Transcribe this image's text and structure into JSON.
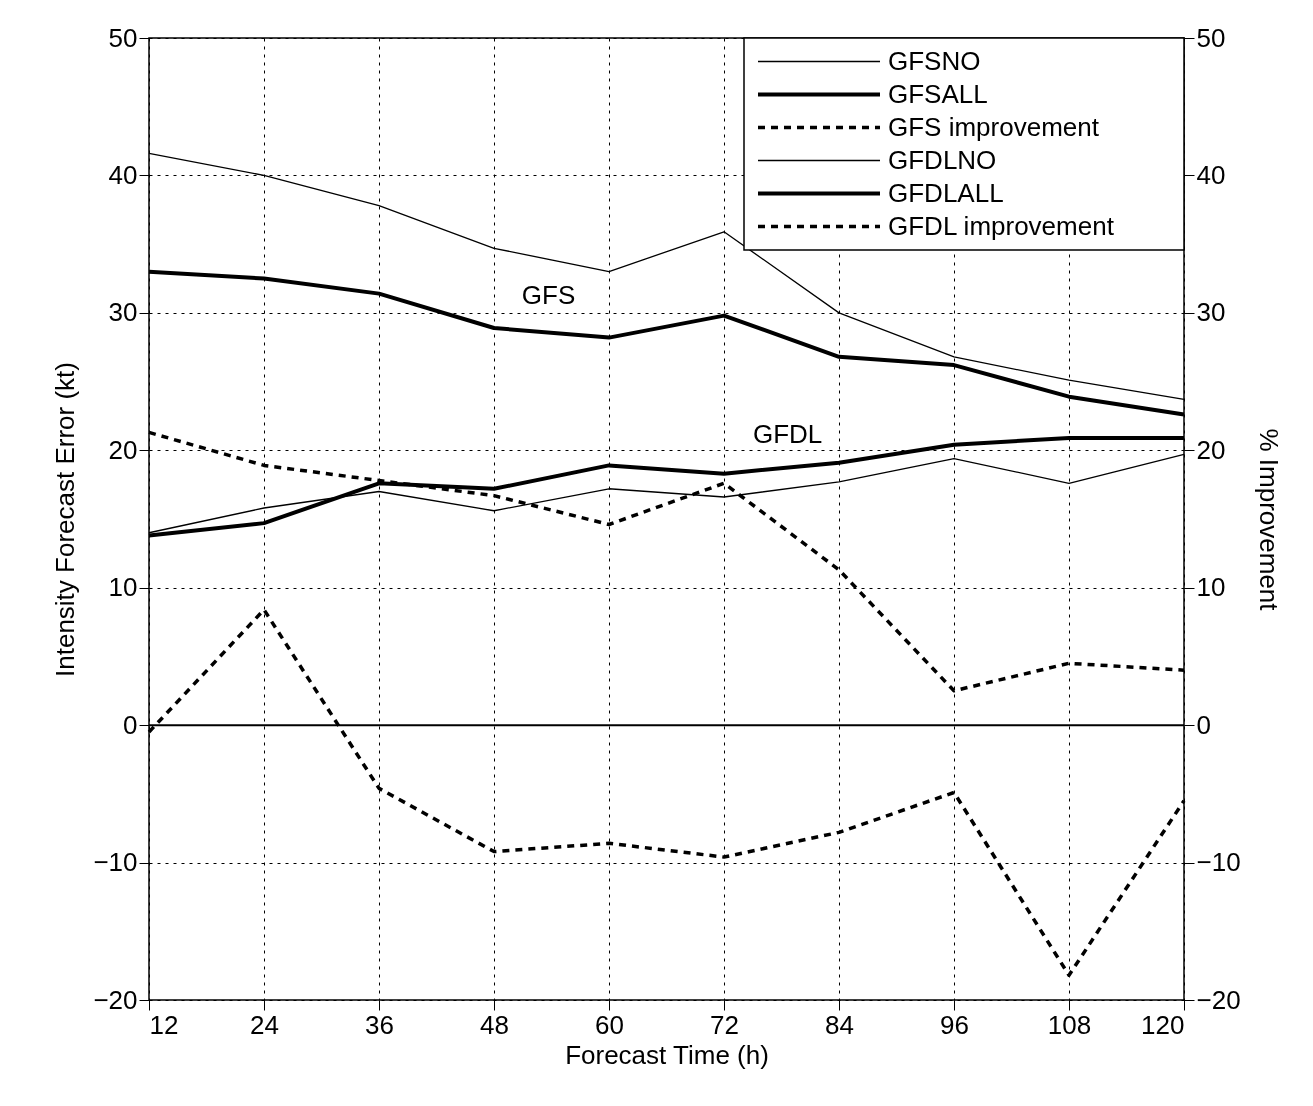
{
  "chart_data": {
    "type": "line",
    "xlabel": "Forecast Time (h)",
    "ylabel": "Intensity Forecast Error (kt)",
    "y2label": "% Improvement",
    "x": [
      12,
      24,
      36,
      48,
      60,
      72,
      84,
      96,
      108,
      120
    ],
    "series": [
      {
        "name": "GFSNO",
        "color": "#000000",
        "line_style": "solid",
        "values": [
          41.6,
          40.0,
          37.8,
          34.7,
          33.0,
          35.9,
          30.0,
          26.8,
          25.1,
          23.7
        ]
      },
      {
        "name": "GFSALL",
        "color": "#000000",
        "line_style": "solid",
        "values": [
          33.0,
          32.5,
          31.4,
          28.9,
          28.2,
          29.8,
          26.8,
          26.2,
          23.9,
          22.6
        ]
      },
      {
        "name": "GFS improvement",
        "color": "#000000",
        "line_style": "dashed",
        "axis": "y2",
        "values": [
          21.3,
          18.9,
          17.8,
          16.7,
          14.6,
          17.6,
          11.3,
          2.5,
          4.5,
          4.0
        ]
      },
      {
        "name": "GFDLNO",
        "color": "#000000",
        "line_style": "solid",
        "values": [
          14.0,
          15.8,
          17.0,
          15.6,
          17.2,
          16.6,
          17.7,
          19.4,
          17.6,
          19.7
        ]
      },
      {
        "name": "GFDLALL",
        "color": "#000000",
        "line_style": "solid",
        "values": [
          13.8,
          14.7,
          17.6,
          17.2,
          18.9,
          18.3,
          19.1,
          20.4,
          20.9,
          20.9
        ]
      },
      {
        "name": "GFDL improvement",
        "color": "#000000",
        "line_style": "dashed",
        "axis": "y2",
        "values": [
          -0.5,
          8.4,
          -4.6,
          -9.2,
          -8.6,
          -9.6,
          -7.8,
          -4.9,
          -18.2,
          -5.5
        ]
      }
    ],
    "xlim": [
      12,
      120
    ],
    "xticks": [
      12,
      24,
      36,
      48,
      60,
      72,
      84,
      96,
      108,
      120
    ],
    "ylim": [
      -20,
      50
    ],
    "yticks": [
      -20,
      -10,
      0,
      10,
      20,
      30,
      40,
      50
    ],
    "y2lim": [
      -20,
      50
    ],
    "y2ticks": [
      -20,
      -10,
      0,
      10,
      20,
      30,
      40,
      50
    ],
    "ref_lines": [
      {
        "axis": "y",
        "value": 0,
        "color": "#000000",
        "line_style": "solid"
      }
    ],
    "annotations": [
      "GFS",
      "GFDL"
    ],
    "grid": true,
    "legend": "top right",
    "marker": "none"
  }
}
